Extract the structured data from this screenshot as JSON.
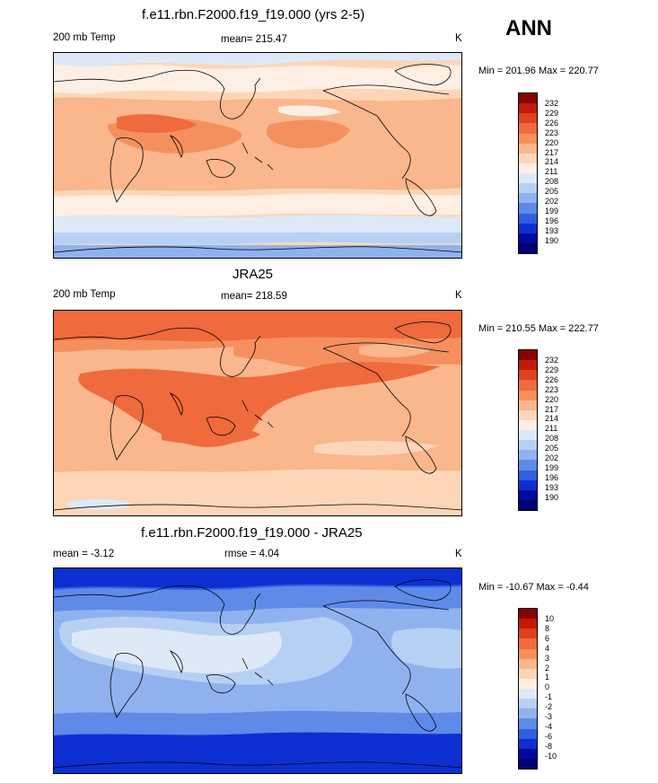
{
  "season": "ANN",
  "panel1": {
    "title": "f.e11.rbn.F2000.f19_f19.000 (yrs 2-5)",
    "left": "200 mb Temp",
    "center": "mean= 215.47",
    "right": "K",
    "minmax": "Min = 201.96 Max = 220.77"
  },
  "panel2": {
    "title": "JRA25",
    "left": "200 mb Temp",
    "center": "mean= 218.59",
    "right": "K",
    "minmax": "Min = 210.55 Max = 222.77"
  },
  "panel3": {
    "title": "f.e11.rbn.F2000.f19_f19.000 - JRA25",
    "left": "mean =  -3.12",
    "center": "rmse =   4.04",
    "right": "K",
    "minmax": "Min = -10.67 Max =  -0.44"
  },
  "temp_levels": [
    "232",
    "229",
    "226",
    "223",
    "220",
    "217",
    "214",
    "211",
    "208",
    "205",
    "202",
    "199",
    "196",
    "193",
    "190"
  ],
  "diff_levels": [
    "10",
    "8",
    "6",
    "4",
    "3",
    "2",
    "1",
    "0",
    "-1",
    "-2",
    "-3",
    "-4",
    "-6",
    "-8",
    "-10"
  ],
  "palette": [
    "#8b0000",
    "#c11a08",
    "#e0421b",
    "#ef6a3c",
    "#f5905e",
    "#fab68c",
    "#fdd6b8",
    "#fdefe3",
    "#dde9f7",
    "#b6d0f4",
    "#8fb2ef",
    "#5f8ae8",
    "#305fe0",
    "#0d2fd2",
    "#000a9c",
    "#000077"
  ]
}
